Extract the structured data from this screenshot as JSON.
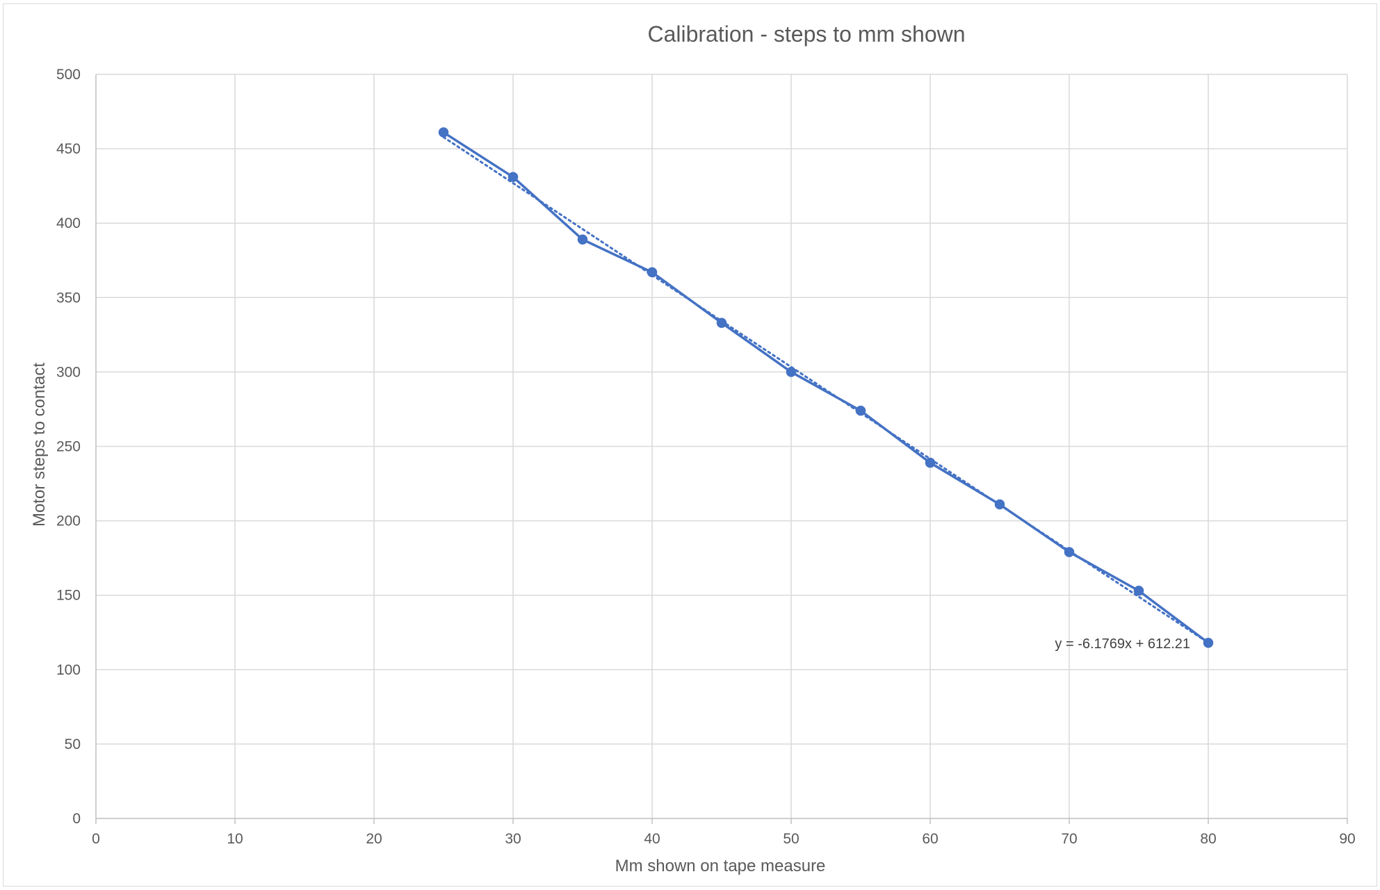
{
  "chart_data": {
    "type": "scatter",
    "title": "Calibration - steps to mm shown",
    "xlabel": "Mm shown on tape measure",
    "ylabel": "Motor steps to contact",
    "xlim": [
      0,
      90
    ],
    "ylim": [
      0,
      500
    ],
    "xticks": [
      0,
      10,
      20,
      30,
      40,
      50,
      60,
      70,
      80,
      90
    ],
    "yticks": [
      0,
      50,
      100,
      150,
      200,
      250,
      300,
      350,
      400,
      450,
      500
    ],
    "grid": true,
    "legend": "none",
    "series": [
      {
        "x": [
          25,
          30,
          35,
          40,
          45,
          50,
          55,
          60,
          65,
          70,
          75,
          80
        ],
        "y": [
          461,
          431,
          389,
          367,
          333,
          300,
          274,
          239,
          211,
          179,
          153,
          118
        ],
        "color": "#4472c4",
        "line": "solid",
        "markers": true
      }
    ],
    "trendline": {
      "type": "linear",
      "slope": -6.1769,
      "intercept": 612.21,
      "x_range": [
        25,
        80
      ],
      "style": "dotted",
      "color": "#4472c4",
      "equation_label": "y = -6.1769x + 612.21"
    }
  }
}
